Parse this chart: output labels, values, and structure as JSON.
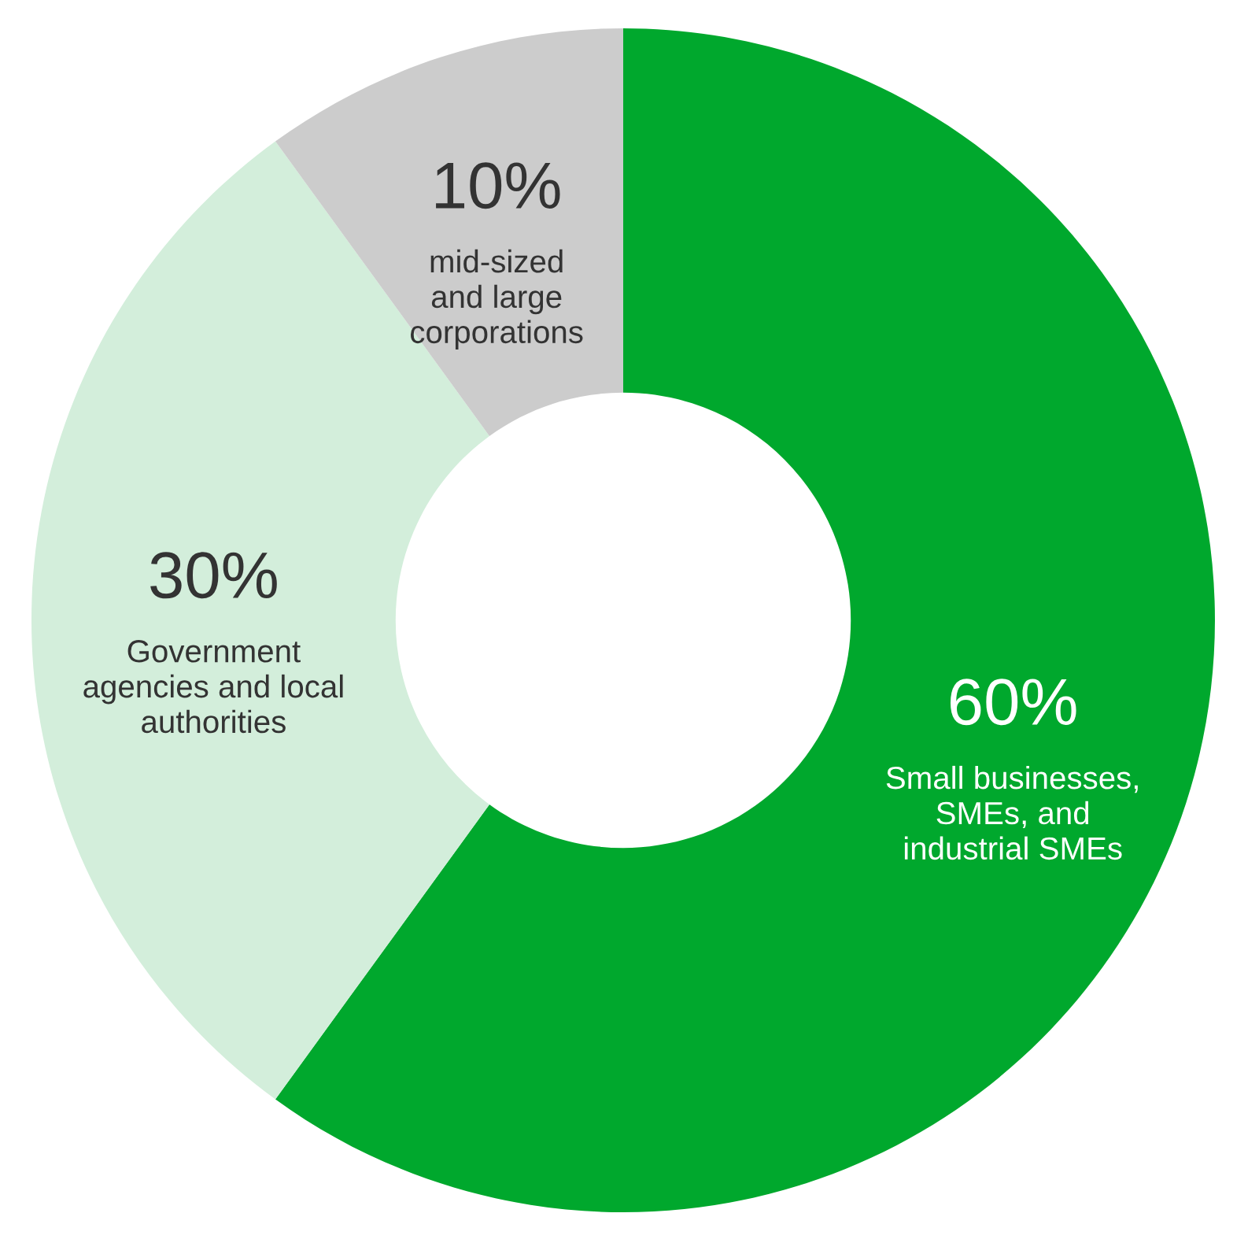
{
  "chart_data": {
    "type": "donut",
    "categories": [
      "Small businesses,\nSMEs, and\nindustrial SMEs",
      "Government\nagencies and local\nauthorities",
      "mid-sized\nand large\ncorporations"
    ],
    "values": [
      60,
      30,
      10
    ],
    "value_labels": [
      "60%",
      "30%",
      "10%"
    ],
    "colors": [
      "#00a82d",
      "#d3eedb",
      "#cccccc"
    ],
    "legend": false
  }
}
